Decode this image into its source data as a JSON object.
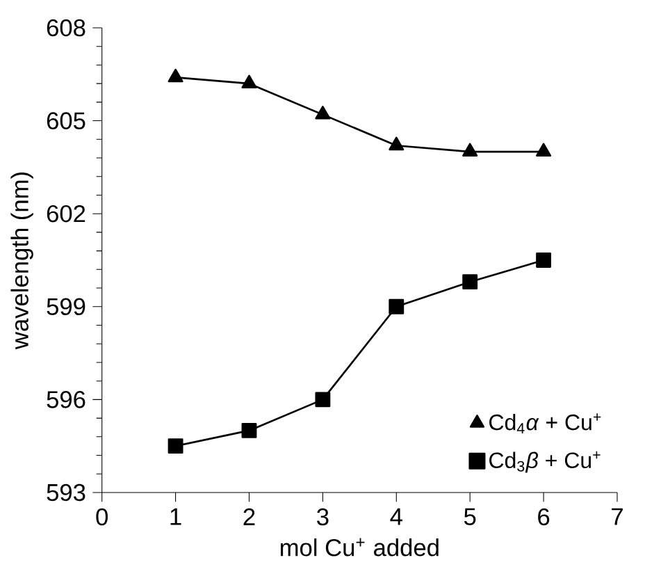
{
  "chart_data": {
    "type": "line",
    "xlabel": "mol Cu$^{+}$ added",
    "ylabel": "wavelength (nm)",
    "x": [
      1,
      2,
      3,
      4,
      5,
      6
    ],
    "series": [
      {
        "name": "Cd$_{4}$*α* + Cu$^{+}$",
        "color": "#000000",
        "marker": "triangle",
        "values": [
          606.4,
          606.2,
          605.2,
          604.2,
          604.0,
          604.0
        ]
      },
      {
        "name": "Cd$_{3}$*β* + Cu$^{+}$",
        "color": "#000000",
        "marker": "square",
        "values": [
          594.5,
          595.0,
          596.0,
          599.0,
          599.8,
          600.5
        ]
      }
    ],
    "xlim": [
      0,
      7
    ],
    "xticks": [
      0,
      1,
      2,
      3,
      4,
      5,
      6,
      7
    ],
    "ylim": [
      593,
      608
    ],
    "yticks": [
      593,
      596,
      599,
      602,
      605,
      608
    ],
    "grid": false,
    "legend": "bottom right",
    "line_style": "solid"
  }
}
